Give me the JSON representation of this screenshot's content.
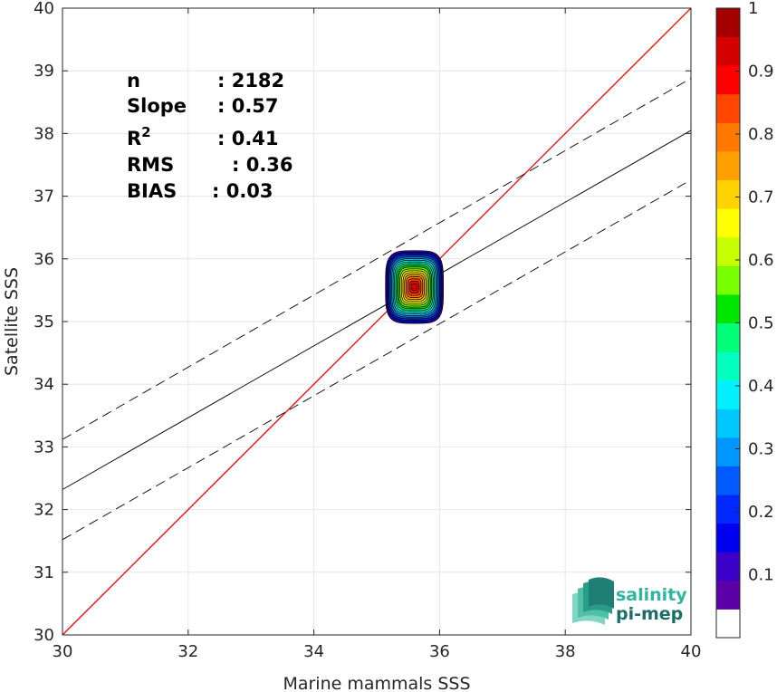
{
  "chart_data": {
    "type": "scatter",
    "subtype": "density-contour",
    "xlabel": "Marine mammals SSS",
    "ylabel": "Satellite SSS",
    "xlim": [
      30,
      40
    ],
    "ylim": [
      30,
      40
    ],
    "x_ticks": [
      30,
      32,
      34,
      36,
      38,
      40
    ],
    "y_ticks": [
      30,
      31,
      32,
      33,
      34,
      35,
      36,
      37,
      38,
      39,
      40
    ],
    "grid": true,
    "stats": [
      {
        "label": "n",
        "value": ": 2182"
      },
      {
        "label": "Slope",
        "value": ": 0.57"
      },
      {
        "label": "R",
        "sup": "2",
        "value": ": 0.41"
      },
      {
        "label": "RMS",
        "value": ": 0.36"
      },
      {
        "label": "BIAS",
        "value": ": 0.03"
      }
    ],
    "lines": [
      {
        "name": "identity",
        "style": "solid",
        "color": "#ff0000",
        "points": [
          [
            30,
            30
          ],
          [
            40,
            40
          ]
        ]
      },
      {
        "name": "regression",
        "style": "solid",
        "color": "#000000",
        "points": [
          [
            30,
            32.32
          ],
          [
            40,
            38.05
          ]
        ]
      },
      {
        "name": "upper-bound",
        "style": "dashed",
        "color": "#000000",
        "points": [
          [
            30,
            33.12
          ],
          [
            40,
            38.88
          ]
        ]
      },
      {
        "name": "lower-bound",
        "style": "dashed",
        "color": "#000000",
        "points": [
          [
            30,
            31.52
          ],
          [
            40,
            37.26
          ]
        ]
      }
    ],
    "density": {
      "center": [
        35.6,
        35.55
      ],
      "levels": [
        0.05,
        0.1,
        0.15,
        0.2,
        0.25,
        0.3,
        0.35,
        0.4,
        0.45,
        0.5,
        0.55,
        0.6,
        0.65,
        0.7,
        0.75,
        0.8,
        0.85,
        0.9,
        0.95
      ],
      "outer_half_width": 0.46,
      "outer_half_height": 0.58
    },
    "colorbar": {
      "range": [
        0,
        1
      ],
      "ticks": [
        0.1,
        0.2,
        0.3,
        0.4,
        0.5,
        0.6,
        0.7,
        0.8,
        0.9,
        1
      ],
      "tick_labels": [
        "0.1",
        "0.2",
        "0.3",
        "0.4",
        "0.5",
        "0.6",
        "0.7",
        "0.8",
        "0.9",
        "1"
      ],
      "colors": [
        "#ffffff",
        "#5a00a6",
        "#3a00c8",
        "#0000f0",
        "#0028ff",
        "#005aff",
        "#0096ff",
        "#00c8ff",
        "#00f0ff",
        "#00ffbe",
        "#00ff78",
        "#00e600",
        "#78ff00",
        "#c8ff00",
        "#ffff00",
        "#ffd200",
        "#ffa000",
        "#ff7800",
        "#ff4600",
        "#ff0000",
        "#d70000",
        "#a50000"
      ]
    }
  },
  "logo": {
    "line1": "salinity",
    "line2": "pi-mep"
  }
}
